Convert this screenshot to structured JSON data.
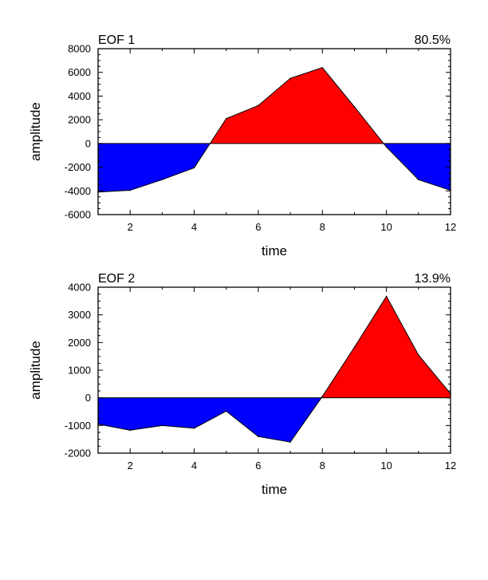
{
  "chart_data": [
    {
      "type": "area",
      "title_left": "EOF 1",
      "title_right": "80.5%",
      "xlabel": "time",
      "ylabel": "amplitude",
      "xlim": [
        1,
        12
      ],
      "ylim": [
        -6000,
        8000
      ],
      "xticks": [
        2,
        4,
        6,
        8,
        10,
        12
      ],
      "yticks": [
        -6000,
        -4000,
        -2000,
        0,
        2000,
        4000,
        6000,
        8000
      ],
      "fill_above_color": "#ff0000",
      "fill_below_color": "#0000ff",
      "x": [
        1,
        2,
        3,
        4,
        5,
        6,
        7,
        8,
        9,
        10,
        11,
        12
      ],
      "values": [
        -4100,
        -3950,
        -3050,
        -2050,
        2100,
        3200,
        5500,
        6400,
        3100,
        -300,
        -3050,
        -3950
      ]
    },
    {
      "type": "area",
      "title_left": "EOF 2",
      "title_right": "13.9%",
      "xlabel": "time",
      "ylabel": "amplitude",
      "xlim": [
        1,
        12
      ],
      "ylim": [
        -2000,
        4000
      ],
      "xticks": [
        2,
        4,
        6,
        8,
        10,
        12
      ],
      "yticks": [
        -2000,
        -1000,
        0,
        1000,
        2000,
        3000,
        4000
      ],
      "fill_above_color": "#ff0000",
      "fill_below_color": "#0000ff",
      "x": [
        1,
        2,
        3,
        4,
        5,
        6,
        7,
        8,
        9,
        10,
        11,
        12
      ],
      "values": [
        -950,
        -1170,
        -1000,
        -1100,
        -480,
        -1400,
        -1600,
        50,
        1830,
        3670,
        1550,
        150
      ]
    }
  ]
}
